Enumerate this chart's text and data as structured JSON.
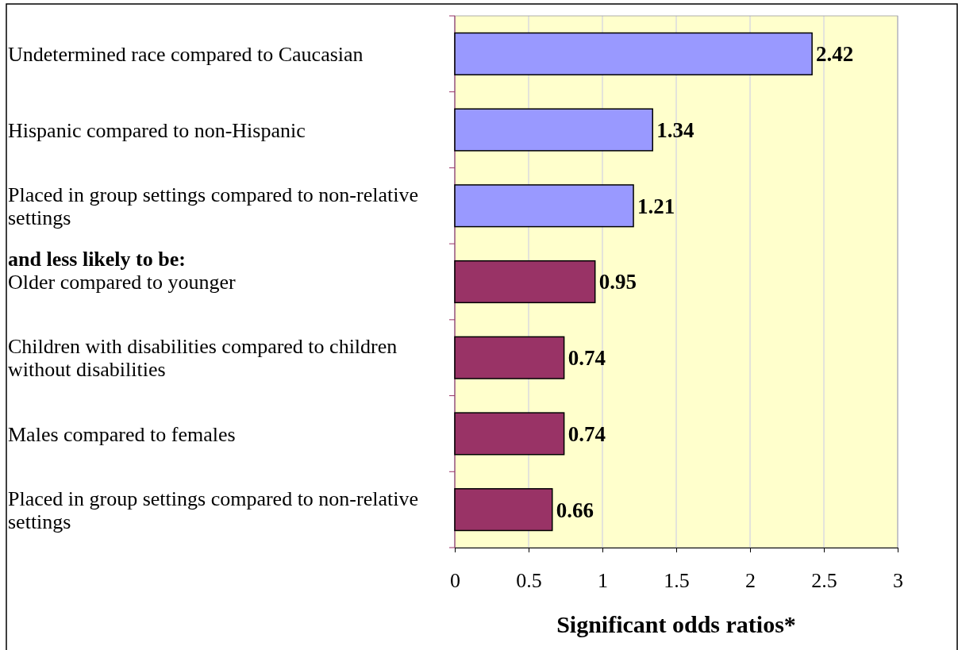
{
  "chart_data": {
    "type": "bar",
    "orientation": "horizontal",
    "xlabel": "Significant odds ratios*",
    "categories": [
      "Undetermined race compared to Caucasian",
      "Hispanic compared to non-Hispanic",
      "Placed in group settings compared to non-relative settings",
      "Older compared to younger",
      "Children with disabilities compared to children without disabilities",
      "Males compared to females",
      "Placed in group settings compared to non-relative settings"
    ],
    "values": [
      2.42,
      1.34,
      1.21,
      0.95,
      0.74,
      0.74,
      0.66
    ],
    "colors": [
      "#9999ff",
      "#9999ff",
      "#9999ff",
      "#993366",
      "#993366",
      "#993366",
      "#993366"
    ],
    "xlim": [
      0,
      3
    ],
    "xticks": [
      0,
      0.5,
      1,
      1.5,
      2,
      2.5,
      3
    ],
    "grid": "x",
    "data_labels": true,
    "annotations": [
      "and less likely to be:"
    ]
  }
}
